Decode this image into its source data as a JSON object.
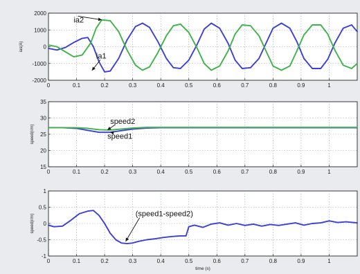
{
  "chart_data": [
    {
      "type": "line",
      "ylabel": "ias(A)",
      "xlabel": "",
      "xlim": [
        0,
        1.1
      ],
      "ylim": [
        -2000,
        2000
      ],
      "xticks": [
        0,
        0.1,
        0.2,
        0.3,
        0.4,
        0.5,
        0.6,
        0.7,
        0.8,
        0.9,
        1
      ],
      "yticks": [
        -2000,
        -1000,
        0,
        1000,
        2000
      ],
      "grid": true,
      "annotations": [
        {
          "text": "ia2",
          "x": 0.09,
          "y": 1450,
          "ax": 0.19,
          "ay": 1600
        },
        {
          "text": "ia1",
          "x": 0.17,
          "y": -700,
          "ax": 0.155,
          "ay": -1420
        }
      ],
      "series": [
        {
          "name": "ia1",
          "color": "#3b3fd6",
          "x": [
            0,
            0.03,
            0.06,
            0.09,
            0.12,
            0.14,
            0.16,
            0.18,
            0.2,
            0.22,
            0.25,
            0.28,
            0.31,
            0.335,
            0.36,
            0.39,
            0.42,
            0.445,
            0.47,
            0.5,
            0.53,
            0.555,
            0.58,
            0.61,
            0.64,
            0.665,
            0.69,
            0.72,
            0.75,
            0.775,
            0.8,
            0.83,
            0.86,
            0.885,
            0.91,
            0.94,
            0.97,
            0.995,
            1.02,
            1.05,
            1.08,
            1.1
          ],
          "y": [
            -100,
            -200,
            -50,
            250,
            500,
            550,
            0,
            -900,
            -1500,
            -1450,
            -700,
            400,
            1200,
            1400,
            1150,
            300,
            -700,
            -1250,
            -1300,
            -800,
            150,
            1050,
            1400,
            1100,
            200,
            -800,
            -1300,
            -1250,
            -700,
            200,
            1100,
            1400,
            1100,
            300,
            -700,
            -1300,
            -1300,
            -750,
            200,
            1100,
            1300,
            900
          ]
        },
        {
          "name": "ia2",
          "color": "#3fb24a",
          "x": [
            0,
            0.03,
            0.06,
            0.09,
            0.12,
            0.15,
            0.17,
            0.19,
            0.22,
            0.25,
            0.28,
            0.31,
            0.335,
            0.36,
            0.39,
            0.42,
            0.445,
            0.47,
            0.5,
            0.53,
            0.555,
            0.58,
            0.61,
            0.64,
            0.665,
            0.69,
            0.72,
            0.75,
            0.775,
            0.8,
            0.83,
            0.86,
            0.885,
            0.91,
            0.94,
            0.97,
            0.995,
            1.02,
            1.05,
            1.08,
            1.1
          ],
          "y": [
            100,
            0,
            -300,
            -600,
            -500,
            200,
            1100,
            1600,
            1550,
            900,
            -200,
            -1100,
            -1400,
            -1200,
            -350,
            650,
            1250,
            1350,
            850,
            -100,
            -1000,
            -1400,
            -1150,
            -250,
            750,
            1300,
            1250,
            650,
            -250,
            -1150,
            -1400,
            -1150,
            -250,
            700,
            1300,
            1300,
            750,
            -200,
            -1100,
            -1300,
            -1000
          ]
        }
      ]
    },
    {
      "type": "line",
      "ylabel": "speed(r/m)",
      "xlabel": "",
      "xlim": [
        0,
        1.1
      ],
      "ylim": [
        15,
        35
      ],
      "xticks": [
        0,
        0.1,
        0.2,
        0.3,
        0.4,
        0.5,
        0.6,
        0.7,
        0.8,
        0.9,
        1
      ],
      "yticks": [
        15,
        20,
        25,
        30,
        35
      ],
      "grid": true,
      "annotations": [
        {
          "text": "speed2",
          "x": 0.22,
          "y": 28.2,
          "ax": 0.21,
          "ay": 26.3
        },
        {
          "text": "speed1",
          "x": 0.21,
          "y": 23.6,
          "ax": 0.22,
          "ay": 25.6
        }
      ],
      "series": [
        {
          "name": "speed1",
          "color": "#3b3fd6",
          "x": [
            0,
            0.05,
            0.1,
            0.14,
            0.18,
            0.22,
            0.26,
            0.3,
            0.35,
            0.4,
            0.5,
            0.6,
            0.7,
            0.8,
            0.9,
            1,
            1.1
          ],
          "y": [
            27,
            27,
            26.8,
            26.2,
            25.6,
            25.6,
            26.1,
            26.6,
            26.9,
            27,
            27,
            27,
            27,
            27,
            27,
            27,
            27
          ]
        },
        {
          "name": "speed2",
          "color": "#3fb24a",
          "x": [
            0,
            0.05,
            0.1,
            0.14,
            0.18,
            0.22,
            0.26,
            0.3,
            0.35,
            0.4,
            0.5,
            0.6,
            0.7,
            0.8,
            0.9,
            1,
            1.1
          ],
          "y": [
            27,
            27,
            27,
            26.8,
            26.4,
            26.3,
            26.6,
            26.9,
            27.1,
            27.1,
            27.1,
            27.1,
            27.1,
            27.1,
            27.1,
            27.1,
            27.1
          ]
        }
      ]
    },
    {
      "type": "line",
      "ylabel": "speed(r/m)",
      "xlabel": "time (s)",
      "xlim": [
        0,
        1.1
      ],
      "ylim": [
        -1,
        1
      ],
      "xticks": [
        0,
        0.1,
        0.2,
        0.3,
        0.4,
        0.5,
        0.6,
        0.7,
        0.8,
        0.9,
        1
      ],
      "yticks": [
        -1,
        -0.5,
        0,
        0.5,
        1
      ],
      "grid": true,
      "annotations": [
        {
          "text": "(speed1-speed2)",
          "x": 0.31,
          "y": 0.22,
          "ax": 0.275,
          "ay": -0.55
        }
      ],
      "series": [
        {
          "name": "(speed1-speed2)",
          "color": "#3b3fd6",
          "x": [
            0,
            0.02,
            0.05,
            0.08,
            0.11,
            0.14,
            0.16,
            0.18,
            0.2,
            0.22,
            0.24,
            0.26,
            0.28,
            0.3,
            0.32,
            0.35,
            0.38,
            0.41,
            0.44,
            0.47,
            0.49,
            0.5,
            0.52,
            0.55,
            0.58,
            0.61,
            0.64,
            0.67,
            0.7,
            0.73,
            0.76,
            0.79,
            0.82,
            0.85,
            0.88,
            0.91,
            0.94,
            0.97,
            1.0,
            1.03,
            1.06,
            1.1
          ],
          "y": [
            -0.05,
            -0.1,
            -0.08,
            0.1,
            0.3,
            0.38,
            0.4,
            0.25,
            0.0,
            -0.3,
            -0.5,
            -0.6,
            -0.62,
            -0.6,
            -0.55,
            -0.5,
            -0.47,
            -0.43,
            -0.4,
            -0.38,
            -0.38,
            -0.1,
            -0.05,
            -0.12,
            -0.02,
            0.02,
            -0.05,
            0.0,
            -0.06,
            -0.02,
            -0.08,
            -0.03,
            -0.06,
            -0.02,
            0.02,
            -0.05,
            0.0,
            0.02,
            0.08,
            0.03,
            0.05,
            0.02
          ]
        }
      ]
    }
  ]
}
